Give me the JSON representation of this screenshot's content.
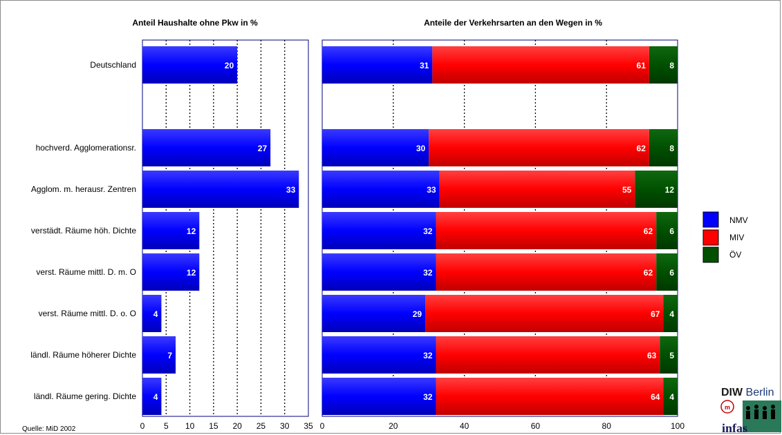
{
  "chart_data": [
    {
      "type": "bar",
      "orientation": "horizontal",
      "title": "Anteil Haushalte ohne Pkw in %",
      "categories": [
        "Deutschland",
        "",
        "hochverd. Agglomerationsr.",
        "Agglom. m. herausr. Zentren",
        "verstädt. Räume höh. Dichte",
        "verst. Räume mittl. D. m. O",
        "verst. Räume mittl. D. o. O",
        "ländl. Räume höherer Dichte",
        "ländl. Räume gering. Dichte"
      ],
      "values": [
        20,
        null,
        27,
        33,
        12,
        12,
        4,
        7,
        4
      ],
      "xlim": [
        0,
        35
      ],
      "xticks": [
        0,
        5,
        10,
        15,
        20,
        25,
        30,
        35
      ],
      "grid": "dotted vertical",
      "color": "#0000ff"
    },
    {
      "type": "bar",
      "orientation": "horizontal",
      "stacked": true,
      "title": "Anteile der Verkehrsarten an den Wegen in %",
      "categories": [
        "Deutschland",
        "",
        "hochverd. Agglomerationsr.",
        "Agglom. m. herausr. Zentren",
        "verstädt. Räume höh. Dichte",
        "verst. Räume mittl. D. m. O",
        "verst. Räume mittl. D. o. O",
        "ländl. Räume höherer Dichte",
        "ländl. Räume gering. Dichte"
      ],
      "series": [
        {
          "name": "NMV",
          "color": "#0000ff",
          "values": [
            31,
            null,
            30,
            33,
            32,
            32,
            29,
            32,
            32
          ]
        },
        {
          "name": "MIV",
          "color": "#ff0000",
          "values": [
            61,
            null,
            62,
            55,
            62,
            62,
            67,
            63,
            64
          ]
        },
        {
          "name": "ÖV",
          "color": "#005000",
          "values": [
            8,
            null,
            8,
            12,
            6,
            6,
            4,
            5,
            4
          ]
        }
      ],
      "xlim": [
        0,
        100
      ],
      "xticks": [
        0,
        20,
        40,
        60,
        80,
        100
      ],
      "grid": "dotted vertical",
      "legend": "right"
    }
  ],
  "source": "Quelle: MiD 2002",
  "logos": {
    "diw": "DIW Berlin",
    "infas": "infas"
  }
}
